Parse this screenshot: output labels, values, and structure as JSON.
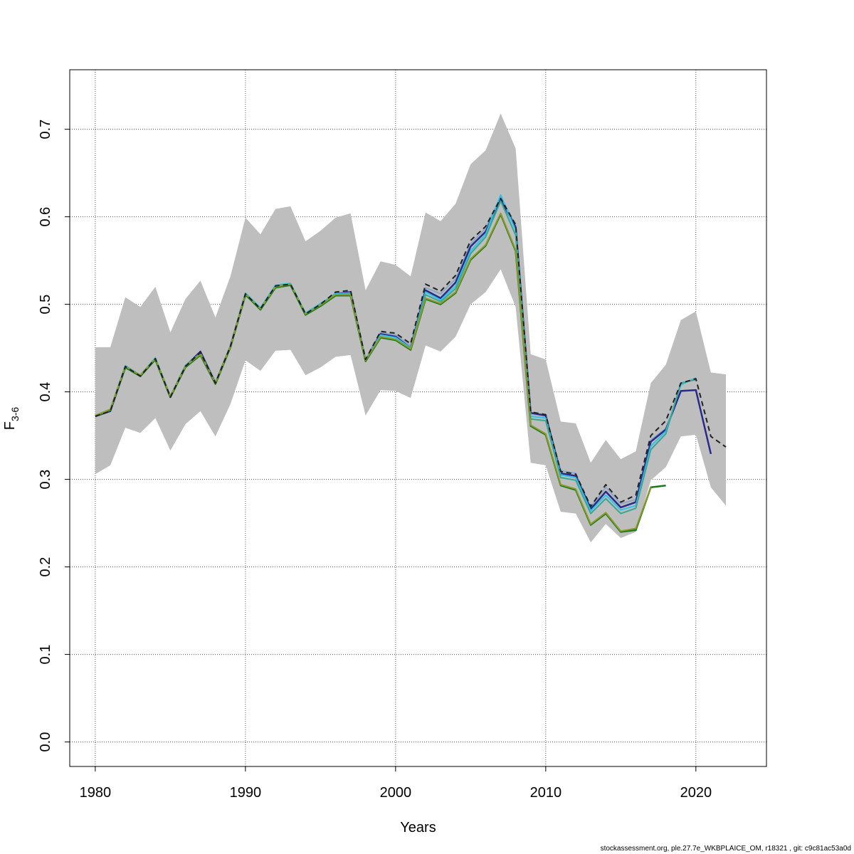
{
  "chart_data": {
    "type": "line",
    "title": "",
    "xlabel": "Years",
    "ylabel_main": "F",
    "ylabel_sub": "3-6",
    "xlim": [
      1978.3,
      2024.7
    ],
    "ylim": [
      -0.028,
      0.768
    ],
    "x_ticks": [
      1980,
      1990,
      2000,
      2010,
      2020
    ],
    "x_tick_labels": [
      "1980",
      "1990",
      "2000",
      "2010",
      "2020"
    ],
    "y_ticks": [
      0.0,
      0.1,
      0.2,
      0.3,
      0.4,
      0.5,
      0.6,
      0.7
    ],
    "y_tick_labels": [
      "0.0",
      "0.1",
      "0.2",
      "0.3",
      "0.4",
      "0.5",
      "0.6",
      "0.7"
    ],
    "grid": true,
    "band": {
      "name": "confidence interval",
      "color": "#bebebe",
      "x": [
        1980,
        1981,
        1982,
        1983,
        1984,
        1985,
        1986,
        1987,
        1988,
        1989,
        1990,
        1991,
        1992,
        1993,
        1994,
        1995,
        1996,
        1997,
        1998,
        1999,
        2000,
        2001,
        2002,
        2003,
        2004,
        2005,
        2006,
        2007,
        2008,
        2009,
        2010,
        2011,
        2012,
        2013,
        2014,
        2015,
        2016,
        2017,
        2018,
        2019,
        2020,
        2021,
        2022
      ],
      "lower": [
        0.306,
        0.316,
        0.359,
        0.353,
        0.37,
        0.333,
        0.363,
        0.378,
        0.349,
        0.386,
        0.436,
        0.424,
        0.447,
        0.448,
        0.419,
        0.428,
        0.44,
        0.442,
        0.373,
        0.402,
        0.401,
        0.393,
        0.453,
        0.446,
        0.463,
        0.5,
        0.514,
        0.54,
        0.497,
        0.319,
        0.316,
        0.263,
        0.261,
        0.228,
        0.249,
        0.233,
        0.24,
        0.299,
        0.314,
        0.349,
        0.351,
        0.291,
        0.27
      ],
      "upper": [
        0.451,
        0.451,
        0.508,
        0.497,
        0.52,
        0.468,
        0.506,
        0.527,
        0.485,
        0.532,
        0.599,
        0.58,
        0.609,
        0.612,
        0.572,
        0.584,
        0.599,
        0.604,
        0.516,
        0.549,
        0.545,
        0.532,
        0.605,
        0.595,
        0.615,
        0.66,
        0.676,
        0.718,
        0.678,
        0.443,
        0.437,
        0.366,
        0.364,
        0.319,
        0.345,
        0.323,
        0.332,
        0.41,
        0.431,
        0.482,
        0.492,
        0.422,
        0.42
      ]
    },
    "series": [
      {
        "name": "grey-blue",
        "color": "#8ea7c4",
        "width": 2,
        "dash": "",
        "x": [
          1980,
          1981,
          1982,
          1983,
          1984,
          1985,
          1986,
          1987,
          1988,
          1989,
          1990,
          1991,
          1992,
          1993,
          1994,
          1995,
          1996,
          1997,
          1998,
          1999,
          2000,
          2001,
          2002,
          2003,
          2004,
          2005,
          2006,
          2007,
          2008,
          2009,
          2010,
          2011,
          2012,
          2013,
          2014,
          2015,
          2016,
          2017,
          2018
        ],
        "values": [
          0.373,
          0.379,
          0.429,
          0.419,
          0.438,
          0.395,
          0.43,
          0.446,
          0.411,
          0.452,
          0.512,
          0.495,
          0.521,
          0.523,
          0.489,
          0.5,
          0.512,
          0.514,
          0.437,
          0.468,
          0.465,
          0.453,
          0.519,
          0.512,
          0.529,
          0.569,
          0.587,
          0.623,
          0.59,
          0.375,
          0.372,
          0.31,
          0.307,
          0.268,
          0.291,
          0.272,
          0.277,
          0.345,
          0.358
        ]
      },
      {
        "name": "dark-blue",
        "color": "#2a2a8c",
        "width": 2.5,
        "dash": "",
        "x": [
          1980,
          1981,
          1982,
          1983,
          1984,
          1985,
          1986,
          1987,
          1988,
          1989,
          1990,
          1991,
          1992,
          1993,
          1994,
          1995,
          1996,
          1997,
          1998,
          1999,
          2000,
          2001,
          2002,
          2003,
          2004,
          2005,
          2006,
          2007,
          2008,
          2009,
          2010,
          2011,
          2012,
          2013,
          2014,
          2015,
          2016,
          2017,
          2018,
          2019,
          2020,
          2021
        ],
        "values": [
          0.372,
          0.378,
          0.428,
          0.418,
          0.437,
          0.394,
          0.429,
          0.446,
          0.41,
          0.452,
          0.512,
          0.494,
          0.52,
          0.523,
          0.489,
          0.5,
          0.512,
          0.514,
          0.436,
          0.466,
          0.463,
          0.45,
          0.516,
          0.507,
          0.525,
          0.566,
          0.583,
          0.62,
          0.588,
          0.376,
          0.373,
          0.307,
          0.304,
          0.266,
          0.286,
          0.268,
          0.274,
          0.343,
          0.357,
          0.401,
          0.402,
          0.329
        ]
      },
      {
        "name": "cyan",
        "color": "#2ec4e6",
        "width": 2,
        "dash": "",
        "x": [
          1980,
          1981,
          1982,
          1983,
          1984,
          1985,
          1986,
          1987,
          1988,
          1989,
          1990,
          1991,
          1992,
          1993,
          1994,
          1995,
          1996,
          1997,
          1998,
          1999,
          2000,
          2001,
          2002,
          2003,
          2004,
          2005,
          2006,
          2007,
          2008,
          2009,
          2010,
          2011,
          2012,
          2013,
          2014,
          2015,
          2016,
          2017,
          2018,
          2019,
          2020
        ],
        "values": [
          0.373,
          0.38,
          0.43,
          0.419,
          0.439,
          0.395,
          0.43,
          0.444,
          0.41,
          0.452,
          0.513,
          0.496,
          0.522,
          0.524,
          0.49,
          0.501,
          0.512,
          0.513,
          0.437,
          0.465,
          0.462,
          0.45,
          0.514,
          0.505,
          0.521,
          0.561,
          0.58,
          0.625,
          0.584,
          0.372,
          0.37,
          0.305,
          0.302,
          0.264,
          0.282,
          0.265,
          0.27,
          0.338,
          0.355,
          0.408,
          0.416
        ]
      },
      {
        "name": "teal",
        "color": "#3aa693",
        "width": 2,
        "dash": "",
        "x": [
          1980,
          1981,
          1982,
          1983,
          1984,
          1985,
          1986,
          1987,
          1988,
          1989,
          1990,
          1991,
          1992,
          1993,
          1994,
          1995,
          1996,
          1997,
          1998,
          1999,
          2000,
          2001,
          2002,
          2003,
          2004,
          2005,
          2006,
          2007,
          2008,
          2009,
          2010,
          2011,
          2012,
          2013,
          2014,
          2015,
          2016,
          2017,
          2018,
          2019,
          2020
        ],
        "values": [
          0.373,
          0.38,
          0.429,
          0.419,
          0.438,
          0.395,
          0.43,
          0.444,
          0.41,
          0.452,
          0.512,
          0.495,
          0.521,
          0.523,
          0.489,
          0.5,
          0.511,
          0.512,
          0.436,
          0.463,
          0.46,
          0.449,
          0.511,
          0.503,
          0.518,
          0.558,
          0.577,
          0.618,
          0.579,
          0.369,
          0.367,
          0.302,
          0.299,
          0.261,
          0.278,
          0.261,
          0.267,
          0.334,
          0.352,
          0.41,
          0.414
        ]
      },
      {
        "name": "dark-green",
        "color": "#1a7a1a",
        "width": 2.5,
        "dash": "",
        "x": [
          1980,
          1981,
          1982,
          1983,
          1984,
          1985,
          1986,
          1987,
          1988,
          1989,
          1990,
          1991,
          1992,
          1993,
          1994,
          1995,
          1996,
          1997,
          1998,
          1999,
          2000,
          2001,
          2002,
          2003,
          2004,
          2005,
          2006,
          2007,
          2008,
          2009,
          2010,
          2011,
          2012,
          2013,
          2014,
          2015,
          2016,
          2017,
          2018
        ],
        "values": [
          0.372,
          0.379,
          0.428,
          0.418,
          0.437,
          0.394,
          0.428,
          0.442,
          0.409,
          0.451,
          0.511,
          0.494,
          0.519,
          0.522,
          0.488,
          0.498,
          0.51,
          0.51,
          0.435,
          0.462,
          0.459,
          0.448,
          0.506,
          0.5,
          0.513,
          0.551,
          0.567,
          0.603,
          0.561,
          0.361,
          0.351,
          0.293,
          0.288,
          0.248,
          0.261,
          0.24,
          0.242,
          0.291,
          0.293
        ]
      },
      {
        "name": "olive",
        "color": "#8c9a2a",
        "width": 2,
        "dash": "",
        "x": [
          1980,
          1981,
          1982,
          1983,
          1984,
          1985,
          1986,
          1987,
          1988,
          1989,
          1990,
          1991,
          1992,
          1993,
          1994,
          1995,
          1996,
          1997,
          1998,
          1999,
          2000,
          2001,
          2002,
          2003,
          2004,
          2005,
          2006,
          2007,
          2008,
          2009,
          2010,
          2011,
          2012,
          2013,
          2014,
          2015,
          2016,
          2017
        ],
        "values": [
          0.373,
          0.38,
          0.429,
          0.419,
          0.438,
          0.395,
          0.429,
          0.443,
          0.41,
          0.452,
          0.512,
          0.495,
          0.52,
          0.523,
          0.489,
          0.499,
          0.511,
          0.511,
          0.436,
          0.463,
          0.46,
          0.449,
          0.507,
          0.501,
          0.514,
          0.552,
          0.568,
          0.604,
          0.562,
          0.362,
          0.352,
          0.294,
          0.289,
          0.249,
          0.262,
          0.241,
          0.244,
          0.291
        ]
      },
      {
        "name": "estimate",
        "color": "#222222",
        "width": 2,
        "dash": "7,5",
        "x": [
          1980,
          1981,
          1982,
          1983,
          1984,
          1985,
          1986,
          1987,
          1988,
          1989,
          1990,
          1991,
          1992,
          1993,
          1994,
          1995,
          1996,
          1997,
          1998,
          1999,
          2000,
          2001,
          2002,
          2003,
          2004,
          2005,
          2006,
          2007,
          2008,
          2009,
          2010,
          2011,
          2012,
          2013,
          2014,
          2015,
          2016,
          2017,
          2018,
          2019,
          2020,
          2021,
          2022
        ],
        "values": [
          0.372,
          0.378,
          0.429,
          0.418,
          0.438,
          0.394,
          0.429,
          0.445,
          0.41,
          0.452,
          0.512,
          0.495,
          0.521,
          0.523,
          0.489,
          0.5,
          0.514,
          0.516,
          0.437,
          0.469,
          0.467,
          0.455,
          0.523,
          0.515,
          0.533,
          0.573,
          0.589,
          0.621,
          0.591,
          0.377,
          0.374,
          0.309,
          0.306,
          0.269,
          0.294,
          0.274,
          0.282,
          0.35,
          0.367,
          0.41,
          0.415,
          0.349,
          0.337
        ]
      }
    ]
  },
  "footer": {
    "text": "stockassessment.org, ple.27.7e_WKBPLAICE_OM, r18321 , git: c9c81ac53a0d"
  }
}
